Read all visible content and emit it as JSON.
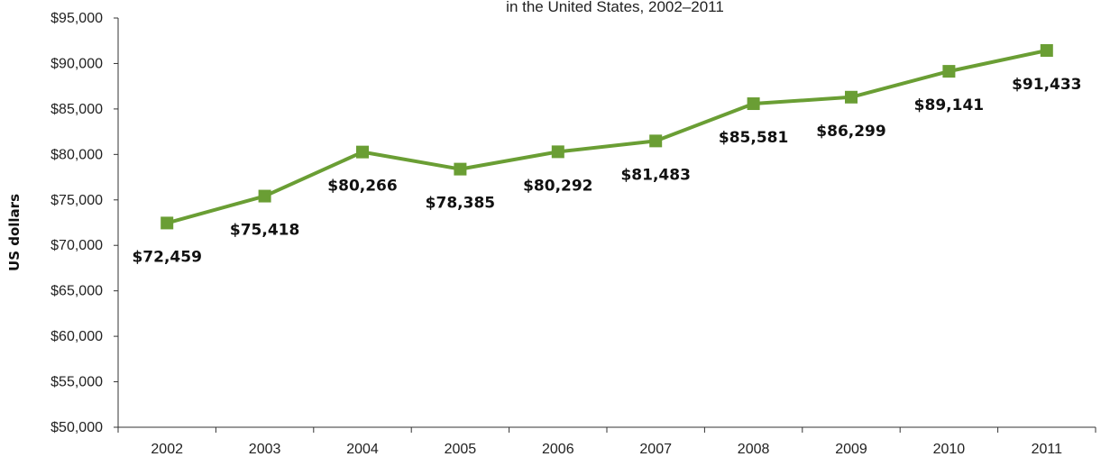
{
  "chart_data": {
    "type": "line",
    "title": "",
    "subtitle": "in the United States, 2002–2011",
    "xlabel": "",
    "ylabel": "US dollars",
    "ylim": [
      50000,
      95000
    ],
    "yticks": [
      "$50,000",
      "$55,000",
      "$60,000",
      "$65,000",
      "$70,000",
      "$75,000",
      "$80,000",
      "$85,000",
      "$90,000",
      "$95,000"
    ],
    "categories": [
      "2002",
      "2003",
      "2004",
      "2005",
      "2006",
      "2007",
      "2008",
      "2009",
      "2010",
      "2011"
    ],
    "series": [
      {
        "values": [
          72459,
          75418,
          80266,
          78385,
          80292,
          81483,
          85581,
          86299,
          89141,
          91433
        ],
        "labels": [
          "$72,459",
          "$75,418",
          "$80,266",
          "$78,385",
          "$80,292",
          "$81,483",
          "$85,581",
          "$86,299",
          "$89,141",
          "$91,433"
        ],
        "color": "#6a9e34"
      }
    ],
    "grid": false,
    "marker": "square"
  }
}
